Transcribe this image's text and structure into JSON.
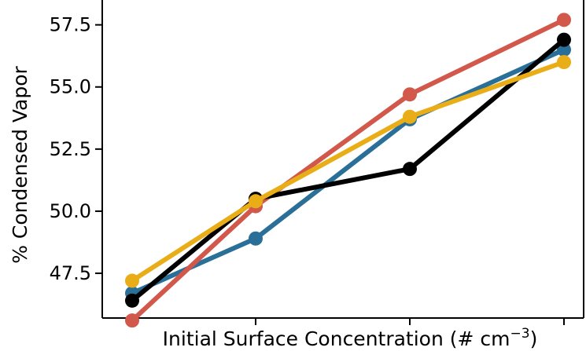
{
  "chart_data": {
    "type": "line",
    "title": "",
    "xlabel": "Initial Surface Concentration (# cm",
    "xlabel_superscript": "−3",
    "xlabel_close": ")",
    "ylabel": "% Condensed Vapor",
    "x": [
      1,
      2,
      3,
      4
    ],
    "ylim": [
      45.7,
      58.5
    ],
    "yticks": [
      "47.5",
      "50.0",
      "52.5",
      "55.0",
      "57.5"
    ],
    "ytick_values": [
      47.5,
      50.0,
      52.5,
      55.0,
      57.5
    ],
    "grid": false,
    "legend": "none",
    "series": [
      {
        "color": "#2a6f97",
        "values": [
          46.7,
          48.9,
          53.7,
          56.5
        ]
      },
      {
        "color": "#d1584a",
        "values": [
          45.6,
          50.2,
          54.7,
          57.7
        ]
      },
      {
        "color": "#000000",
        "values": [
          46.4,
          50.5,
          51.7,
          56.9
        ]
      },
      {
        "color": "#e9ae17",
        "values": [
          47.2,
          50.4,
          53.8,
          56.0
        ]
      }
    ]
  }
}
